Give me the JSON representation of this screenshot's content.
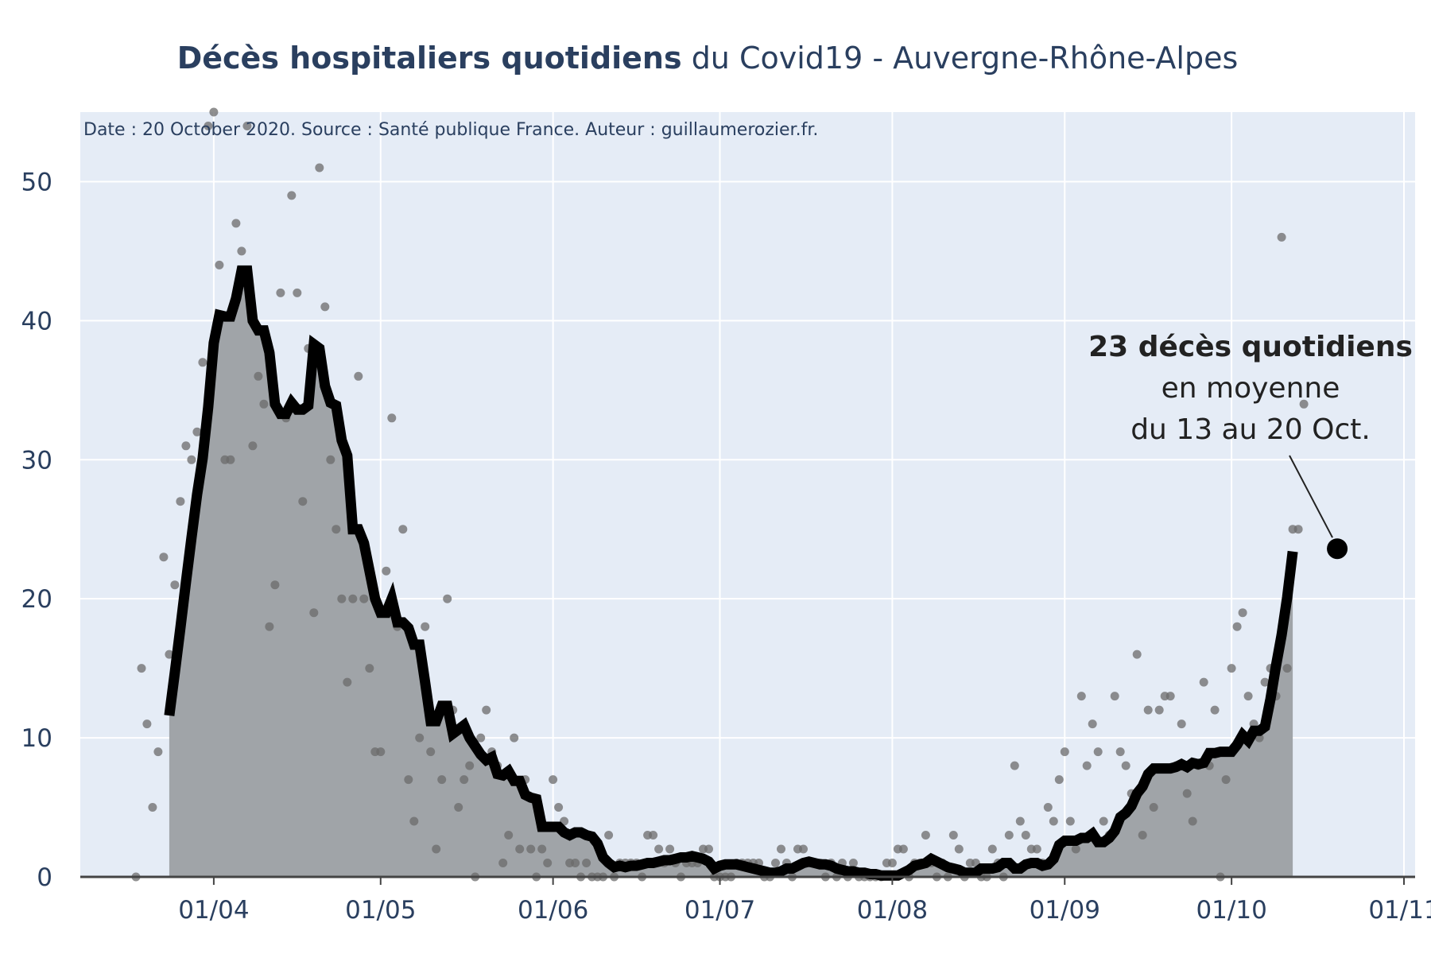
{
  "chart_data": {
    "type": "line",
    "title_bold": "Décès hospitaliers quotidiens",
    "title_rest": " du Covid19 - Auvergne-Rhône-Alpes",
    "note": "Date : 20 October 2020. Source : Santé publique France. Auteur : guillaumerozier.fr.",
    "xlabel": "",
    "ylabel": "",
    "x_start": "2020-03-18",
    "x_end": "2020-10-20",
    "xlim": [
      "2020-03-08",
      "2020-11-03"
    ],
    "ylim": [
      0,
      55
    ],
    "x_ticks": [
      {
        "date": "2020-04-01",
        "label": "01/04"
      },
      {
        "date": "2020-05-01",
        "label": "01/05"
      },
      {
        "date": "2020-06-01",
        "label": "01/06"
      },
      {
        "date": "2020-07-01",
        "label": "01/07"
      },
      {
        "date": "2020-08-01",
        "label": "01/08"
      },
      {
        "date": "2020-09-01",
        "label": "01/09"
      },
      {
        "date": "2020-10-01",
        "label": "01/10"
      },
      {
        "date": "2020-11-01",
        "label": "01/11"
      }
    ],
    "y_ticks": [
      0,
      10,
      20,
      30,
      40,
      50
    ],
    "grid": true,
    "colors": {
      "plot_bg": "#e5ecf6",
      "grid": "#ffffff",
      "line": "#000000",
      "fill": "#a0a4a8",
      "dots": "#6b6b6b"
    },
    "series": [
      {
        "kind": "scatter",
        "values": [
          0,
          15,
          11,
          5,
          9,
          23,
          16,
          21,
          27,
          31,
          30,
          32,
          37,
          54,
          55,
          44,
          30,
          30,
          47,
          45,
          54,
          31,
          36,
          34,
          18,
          21,
          42,
          33,
          49,
          42,
          27,
          38,
          19,
          51,
          41,
          30,
          25,
          20,
          14,
          20,
          36,
          20,
          15,
          9,
          9,
          22,
          33,
          18,
          25,
          7,
          4,
          10,
          18,
          9,
          2,
          7,
          20,
          12,
          5,
          7,
          8,
          0,
          10,
          12,
          9,
          8,
          1,
          3,
          10,
          2,
          7,
          2,
          0,
          2,
          1,
          7,
          5,
          4,
          1,
          1,
          0,
          1,
          0,
          0,
          0,
          3,
          0,
          1,
          1,
          1,
          1,
          0,
          3,
          3,
          2,
          1,
          2,
          1,
          0,
          1,
          1,
          1,
          2,
          2,
          0,
          0,
          0,
          0,
          1,
          1,
          1,
          1,
          1,
          0,
          0,
          1,
          2,
          1,
          0,
          2,
          2,
          1,
          1,
          1,
          0,
          1,
          0,
          1,
          0,
          1,
          0,
          0,
          0,
          0,
          0,
          1,
          1,
          2,
          2,
          0,
          1,
          1,
          3,
          1,
          0,
          1,
          0,
          3,
          2,
          0,
          1,
          1,
          0,
          0,
          2,
          1,
          0,
          3,
          8,
          4,
          3,
          2,
          2,
          1,
          5,
          4,
          7,
          9,
          4,
          2,
          13,
          8,
          11,
          9,
          4,
          3,
          13,
          9,
          8,
          6,
          16,
          3,
          12,
          5,
          12,
          13,
          13,
          8,
          11,
          6,
          4,
          8,
          14,
          8,
          12,
          0,
          7,
          15,
          18,
          19,
          13,
          11,
          10,
          14,
          15,
          13,
          46,
          15,
          25,
          25,
          34
        ],
        "note": "daily hospital deaths, one value per day starting x_start"
      },
      {
        "kind": "line-area",
        "values": [
          null,
          null,
          null,
          null,
          null,
          null,
          11.6,
          14.7,
          17.9,
          21.2,
          24.4,
          27.5,
          30.1,
          33.8,
          38.4,
          40.4,
          40.3,
          40.3,
          41.6,
          43.6,
          43.6,
          40.0,
          39.3,
          39.3,
          37.7,
          34.0,
          33.3,
          33.3,
          34.1,
          33.6,
          33.6,
          33.9,
          38.3,
          38.0,
          35.3,
          34.1,
          33.9,
          31.4,
          30.3,
          25.0,
          25.0,
          24.0,
          22.0,
          20.0,
          19.0,
          19.0,
          20.0,
          18.3,
          18.3,
          17.9,
          16.7,
          16.7,
          14.0,
          11.2,
          11.2,
          12.3,
          12.3,
          10.3,
          10.6,
          10.9,
          10.0,
          9.4,
          8.8,
          8.4,
          8.6,
          7.4,
          7.3,
          7.6,
          6.9,
          6.9,
          5.9,
          5.7,
          5.6,
          3.6,
          3.6,
          3.6,
          3.6,
          3.2,
          3.0,
          3.2,
          3.2,
          3.0,
          2.9,
          2.4,
          1.4,
          1.0,
          0.7,
          0.8,
          0.7,
          0.8,
          0.8,
          0.9,
          1.0,
          1.0,
          1.1,
          1.2,
          1.2,
          1.3,
          1.4,
          1.4,
          1.5,
          1.4,
          1.3,
          1.1,
          0.6,
          0.8,
          0.9,
          0.9,
          0.9,
          0.8,
          0.7,
          0.6,
          0.5,
          0.4,
          0.3,
          0.3,
          0.4,
          0.6,
          0.6,
          0.8,
          1.0,
          1.1,
          1.0,
          0.9,
          0.9,
          0.8,
          0.6,
          0.5,
          0.4,
          0.4,
          0.3,
          0.3,
          0.2,
          0.2,
          0.1,
          0.1,
          0.1,
          0.1,
          0.3,
          0.5,
          0.8,
          0.9,
          1.0,
          1.3,
          1.1,
          0.9,
          0.7,
          0.6,
          0.5,
          0.3,
          0.3,
          0.3,
          0.6,
          0.6,
          0.6,
          0.7,
          1.0,
          1.0,
          0.6,
          0.6,
          0.9,
          1.0,
          1.0,
          0.8,
          0.9,
          1.3,
          2.3,
          2.6,
          2.6,
          2.6,
          2.8,
          2.8,
          3.1,
          2.5,
          2.5,
          2.8,
          3.3,
          4.3,
          4.6,
          5.1,
          6.0,
          6.5,
          7.4,
          7.8,
          7.8,
          7.8,
          7.8,
          7.9,
          8.1,
          7.9,
          8.2,
          8.1,
          8.2,
          8.9,
          8.9,
          9.0,
          9.0,
          9.0,
          9.5,
          10.2,
          9.8,
          10.5,
          10.5,
          10.8,
          12.8,
          15.2,
          17.4,
          20.1,
          23.4
        ]
      }
    ],
    "annotation": {
      "line1": "23 décès quotidiens",
      "line2": "en moyenne",
      "line3": "du 13 au 20 Oct.",
      "target_date": "2020-10-20",
      "target_value": 23.6
    }
  }
}
